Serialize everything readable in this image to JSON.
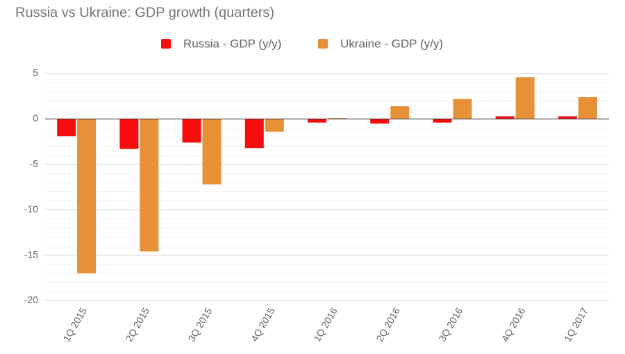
{
  "chart_data": {
    "type": "bar",
    "title": "Russia vs Ukraine: GDP growth (quarters)",
    "categories": [
      "1Q 2015",
      "2Q 2015",
      "3Q 2015",
      "4Q 2015",
      "1Q 2016",
      "2Q 2016",
      "3Q 2016",
      "4Q 2016",
      "1Q 2017"
    ],
    "series": [
      {
        "name": "Russia - GDP (y/y)",
        "color": "#f70d0d",
        "values": [
          -1.9,
          -3.3,
          -2.6,
          -3.2,
          -0.4,
          -0.5,
          -0.4,
          0.3,
          0.3
        ]
      },
      {
        "name": "Ukraine - GDP (y/y)",
        "color": "#e69138",
        "values": [
          -17.0,
          -14.6,
          -7.2,
          -1.4,
          0.1,
          1.4,
          2.2,
          4.6,
          2.4
        ]
      }
    ],
    "ylim": [
      -20,
      5
    ],
    "yticks": [
      -20,
      -15,
      -10,
      -5,
      0,
      5
    ],
    "minor_yticks": [
      -19,
      -18,
      -17,
      -16,
      -14,
      -13,
      -12,
      -11,
      -9,
      -8,
      -7,
      -6,
      -4,
      -3,
      -2,
      -1,
      1,
      2,
      3,
      4
    ],
    "grid": true,
    "legend": "top"
  }
}
